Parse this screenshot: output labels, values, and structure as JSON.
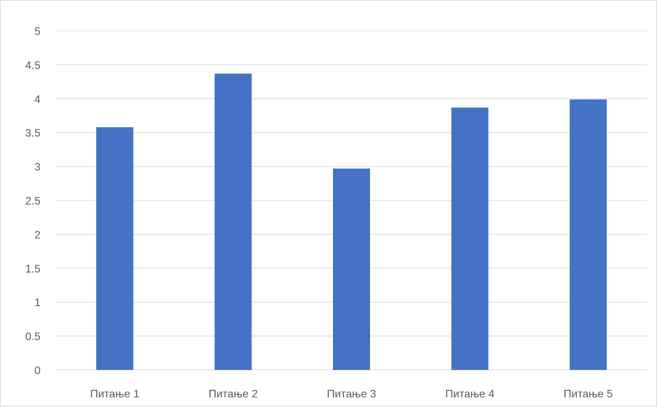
{
  "chart_data": {
    "type": "bar",
    "title": "",
    "xlabel": "",
    "ylabel": "",
    "categories": [
      "Питање 1",
      "Питање 2",
      "Питање 3",
      "Питање 4",
      "Питање 5"
    ],
    "values": [
      3.58,
      4.37,
      2.97,
      3.87,
      3.99
    ],
    "ylim": [
      0,
      5
    ],
    "yticks": [
      0,
      0.5,
      1,
      1.5,
      2,
      2.5,
      3,
      3.5,
      4,
      4.5,
      5
    ],
    "ytick_labels": [
      "0",
      "0.5",
      "1",
      "1.5",
      "2",
      "2.5",
      "3",
      "3.5",
      "4",
      "4.5",
      "5"
    ],
    "grid": true,
    "legend": "none",
    "bar_color": "#4472C4",
    "grid_color": "#d9d9d9"
  }
}
